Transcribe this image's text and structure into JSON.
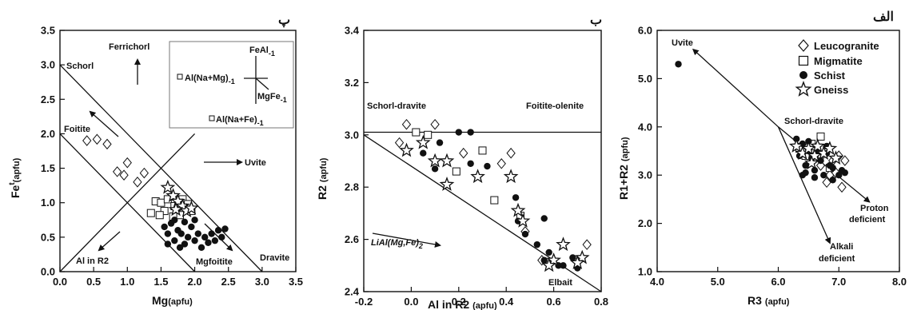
{
  "chart_data": [
    {
      "type": "scatter",
      "panel_label": "پ",
      "xlabel": "Mg",
      "xlabel_sub": "(apfu)",
      "ylabel": "Fe",
      "ylabel_sup": "t",
      "ylabel_sub": "(apfu)",
      "xlim": [
        0,
        3.5
      ],
      "ylim": [
        0,
        3.5
      ],
      "xticks": [
        "0.0",
        "0.5",
        "1.0",
        "1.5",
        "2.0",
        "2.5",
        "3.0",
        "3.5"
      ],
      "yticks": [
        "0.0",
        "0.5",
        "1.0",
        "1.5",
        "2.0",
        "2.5",
        "3.0",
        "3.5"
      ],
      "annotations": {
        "schorl": "Schorl",
        "ferrichorl": "Ferrichorl",
        "foitite": "Foitite",
        "uvite": "Uvite",
        "al_in_r2": "Al in R2",
        "mgfoitite": "Mgfoitite",
        "dravite": "Dravite"
      },
      "inset": {
        "feal": "FeAl",
        "feal_sub": "-1",
        "alnamg": "Al(Na+Mg)",
        "alnamg_sub": "-1",
        "mgfe": "MgFe",
        "mgfe_sub": "-1",
        "alnafe": "Al(Na+Fe)",
        "alnafe_sub": "-1"
      },
      "lines": [
        {
          "from": [
            0,
            3.0
          ],
          "to": [
            3.0,
            0
          ]
        },
        {
          "from": [
            0,
            2.0
          ],
          "to": [
            2.0,
            0
          ]
        },
        {
          "from": [
            0,
            0
          ],
          "to": [
            2.0,
            2.0
          ]
        }
      ],
      "series": [
        {
          "name": "Leucogranite",
          "marker": "diamond",
          "points": [
            [
              0.4,
              1.9
            ],
            [
              0.55,
              1.92
            ],
            [
              0.7,
              1.85
            ],
            [
              0.85,
              1.45
            ],
            [
              0.95,
              1.4
            ],
            [
              1.0,
              1.58
            ],
            [
              1.15,
              1.3
            ],
            [
              1.25,
              1.43
            ]
          ]
        },
        {
          "name": "Migmatite",
          "marker": "square",
          "points": [
            [
              1.35,
              0.85
            ],
            [
              1.42,
              1.02
            ],
            [
              1.5,
              1.0
            ],
            [
              1.55,
              0.88
            ],
            [
              1.6,
              1.05
            ],
            [
              1.7,
              0.95
            ],
            [
              1.78,
              0.82
            ],
            [
              1.82,
              1.05
            ],
            [
              1.9,
              0.98
            ],
            [
              1.95,
              0.88
            ],
            [
              1.68,
              0.8
            ],
            [
              1.48,
              0.82
            ]
          ]
        },
        {
          "name": "Schist",
          "marker": "circle",
          "points": [
            [
              1.55,
              0.65
            ],
            [
              1.6,
              0.55
            ],
            [
              1.65,
              0.7
            ],
            [
              1.7,
              0.45
            ],
            [
              1.75,
              0.6
            ],
            [
              1.8,
              0.55
            ],
            [
              1.85,
              0.4
            ],
            [
              1.9,
              0.5
            ],
            [
              1.95,
              0.65
            ],
            [
              2.0,
              0.45
            ],
            [
              2.05,
              0.55
            ],
            [
              2.1,
              0.35
            ],
            [
              2.15,
              0.5
            ],
            [
              2.2,
              0.42
            ],
            [
              2.3,
              0.45
            ],
            [
              2.35,
              0.6
            ],
            [
              2.45,
              0.62
            ],
            [
              1.7,
              0.75
            ],
            [
              1.85,
              0.72
            ],
            [
              2.0,
              0.75
            ],
            [
              1.78,
              0.35
            ],
            [
              2.25,
              0.55
            ],
            [
              2.4,
              0.5
            ],
            [
              1.6,
              0.4
            ]
          ]
        },
        {
          "name": "Gneiss",
          "marker": "star",
          "points": [
            [
              1.6,
              1.22
            ],
            [
              1.68,
              1.1
            ],
            [
              1.75,
              1.02
            ],
            [
              1.82,
              0.95
            ],
            [
              1.88,
              0.88
            ],
            [
              1.95,
              0.92
            ],
            [
              1.72,
              0.9
            ]
          ]
        }
      ]
    },
    {
      "type": "scatter",
      "panel_label": "ب",
      "xlabel": "Al in R2",
      "xlabel_sub": "(apfu)",
      "ylabel": "R2",
      "ylabel_sub": "(apfu)",
      "xlim": [
        -0.2,
        0.8
      ],
      "ylim": [
        2.4,
        3.4
      ],
      "xticks": [
        "-0.2",
        "0.0",
        "0.2",
        "0.4",
        "0.6",
        "0.8"
      ],
      "yticks": [
        "2.4",
        "2.6",
        "2.8",
        "3.0",
        "3.2",
        "3.4"
      ],
      "annotations": {
        "schorl_dravite": "Schorl-dravite",
        "foitite_olenite": "Foitite-olenite",
        "lial": "LiAl(Mg,Fe)",
        "lial_sub": "2",
        "elbait": "Elbait"
      },
      "lines": [
        {
          "from": [
            -0.2,
            3.01
          ],
          "to": [
            0.8,
            3.01
          ]
        },
        {
          "from": [
            -0.2,
            3.0
          ],
          "to": [
            0.8,
            2.4
          ]
        }
      ],
      "series": [
        {
          "name": "Leucogranite",
          "marker": "diamond",
          "points": [
            [
              -0.05,
              2.97
            ],
            [
              -0.02,
              3.04
            ],
            [
              0.1,
              3.04
            ],
            [
              0.22,
              2.93
            ],
            [
              0.38,
              2.89
            ],
            [
              0.42,
              2.93
            ],
            [
              0.48,
              2.63
            ],
            [
              0.55,
              2.52
            ],
            [
              0.74,
              2.58
            ]
          ]
        },
        {
          "name": "Migmatite",
          "marker": "square",
          "points": [
            [
              0.02,
              3.01
            ],
            [
              0.07,
              3.0
            ],
            [
              0.19,
              2.86
            ],
            [
              0.3,
              2.94
            ],
            [
              0.35,
              2.75
            ],
            [
              0.46,
              2.69
            ]
          ]
        },
        {
          "name": "Schist",
          "marker": "circle",
          "points": [
            [
              0.05,
              2.93
            ],
            [
              0.1,
              2.87
            ],
            [
              0.12,
              2.97
            ],
            [
              0.2,
              3.01
            ],
            [
              0.25,
              3.01
            ],
            [
              0.25,
              2.89
            ],
            [
              0.32,
              2.88
            ],
            [
              0.44,
              2.76
            ],
            [
              0.45,
              2.67
            ],
            [
              0.48,
              2.62
            ],
            [
              0.53,
              2.58
            ],
            [
              0.56,
              2.68
            ],
            [
              0.58,
              2.55
            ],
            [
              0.6,
              2.52
            ],
            [
              0.62,
              2.5
            ],
            [
              0.68,
              2.53
            ],
            [
              0.7,
              2.49
            ],
            [
              0.56,
              2.52
            ],
            [
              0.64,
              2.5
            ]
          ]
        },
        {
          "name": "Gneiss",
          "marker": "star",
          "points": [
            [
              -0.02,
              2.94
            ],
            [
              0.05,
              2.97
            ],
            [
              0.1,
              2.9
            ],
            [
              0.15,
              2.9
            ],
            [
              0.15,
              2.81
            ],
            [
              0.28,
              2.84
            ],
            [
              0.42,
              2.84
            ],
            [
              0.45,
              2.71
            ],
            [
              0.47,
              2.67
            ],
            [
              0.6,
              2.52
            ],
            [
              0.64,
              2.58
            ],
            [
              0.72,
              2.53
            ],
            [
              0.58,
              2.5
            ],
            [
              0.7,
              2.51
            ]
          ]
        }
      ]
    },
    {
      "type": "scatter",
      "panel_label": "الف",
      "xlabel": "R3",
      "xlabel_sub": "(apfu)",
      "ylabel": "R1+R2",
      "ylabel_sub": "(apfu)",
      "xlim": [
        4.0,
        8.0
      ],
      "ylim": [
        1.0,
        6.0
      ],
      "xticks": [
        "4.0",
        "5.0",
        "6.0",
        "7.0",
        "8.0"
      ],
      "yticks": [
        "1.0",
        "2.0",
        "3.0",
        "4.0",
        "5.0",
        "6.0"
      ],
      "annotations": {
        "uvite": "Uvite",
        "schorl_dravite": "Schorl-dravite",
        "proton1": "Proton",
        "proton2": "deficient",
        "alkali1": "Alkali",
        "alkali2": "deficient"
      },
      "legend": {
        "position": "top-right",
        "entries": [
          "Leucogranite",
          "Migmatite",
          "Schist",
          "Gneiss"
        ]
      },
      "arrows": [
        {
          "from": [
            6.0,
            4.0
          ],
          "to": [
            4.6,
            5.6
          ]
        },
        {
          "from": [
            6.0,
            4.0
          ],
          "to": [
            6.85,
            1.6
          ]
        },
        {
          "from": [
            6.0,
            4.0
          ],
          "to": [
            7.5,
            2.45
          ]
        }
      ],
      "series": [
        {
          "name": "Leucogranite",
          "marker": "diamond",
          "points": [
            [
              6.4,
              3.5
            ],
            [
              6.5,
              3.6
            ],
            [
              6.6,
              3.35
            ],
            [
              6.7,
              3.2
            ],
            [
              6.75,
              3.45
            ],
            [
              6.8,
              2.85
            ],
            [
              6.85,
              3.0
            ],
            [
              6.9,
              3.3
            ],
            [
              6.95,
              3.05
            ],
            [
              7.0,
              3.4
            ],
            [
              7.05,
              2.75
            ],
            [
              7.1,
              3.3
            ]
          ]
        },
        {
          "name": "Migmatite",
          "marker": "square",
          "points": [
            [
              6.35,
              3.55
            ],
            [
              6.45,
              3.4
            ],
            [
              6.55,
              3.65
            ],
            [
              6.6,
              3.45
            ],
            [
              6.7,
              3.8
            ],
            [
              6.75,
              3.55
            ],
            [
              6.85,
              3.15
            ]
          ]
        },
        {
          "name": "Schist",
          "marker": "circle",
          "points": [
            [
              4.35,
              5.3
            ],
            [
              6.3,
              3.75
            ],
            [
              6.35,
              3.4
            ],
            [
              6.4,
              3.65
            ],
            [
              6.45,
              3.2
            ],
            [
              6.5,
              3.5
            ],
            [
              6.55,
              3.35
            ],
            [
              6.6,
              3.1
            ],
            [
              6.65,
              3.5
            ],
            [
              6.7,
              3.3
            ],
            [
              6.75,
              3.0
            ],
            [
              6.8,
              3.45
            ],
            [
              6.85,
              3.2
            ],
            [
              6.9,
              3.15
            ],
            [
              6.95,
              3.35
            ],
            [
              7.0,
              3.0
            ],
            [
              7.05,
              3.1
            ],
            [
              6.4,
              3.0
            ],
            [
              6.6,
              2.95
            ],
            [
              6.9,
              2.9
            ],
            [
              7.1,
              3.05
            ],
            [
              6.8,
              3.6
            ],
            [
              6.5,
              3.7
            ],
            [
              6.45,
              3.05
            ]
          ]
        },
        {
          "name": "Gneiss",
          "marker": "star",
          "points": [
            [
              6.3,
              3.6
            ],
            [
              6.4,
              3.45
            ],
            [
              6.5,
              3.55
            ],
            [
              6.6,
              3.4
            ],
            [
              6.65,
              3.6
            ],
            [
              6.75,
              3.45
            ],
            [
              6.85,
              3.55
            ],
            [
              6.95,
              3.35
            ],
            [
              6.55,
              3.25
            ]
          ]
        }
      ]
    }
  ]
}
